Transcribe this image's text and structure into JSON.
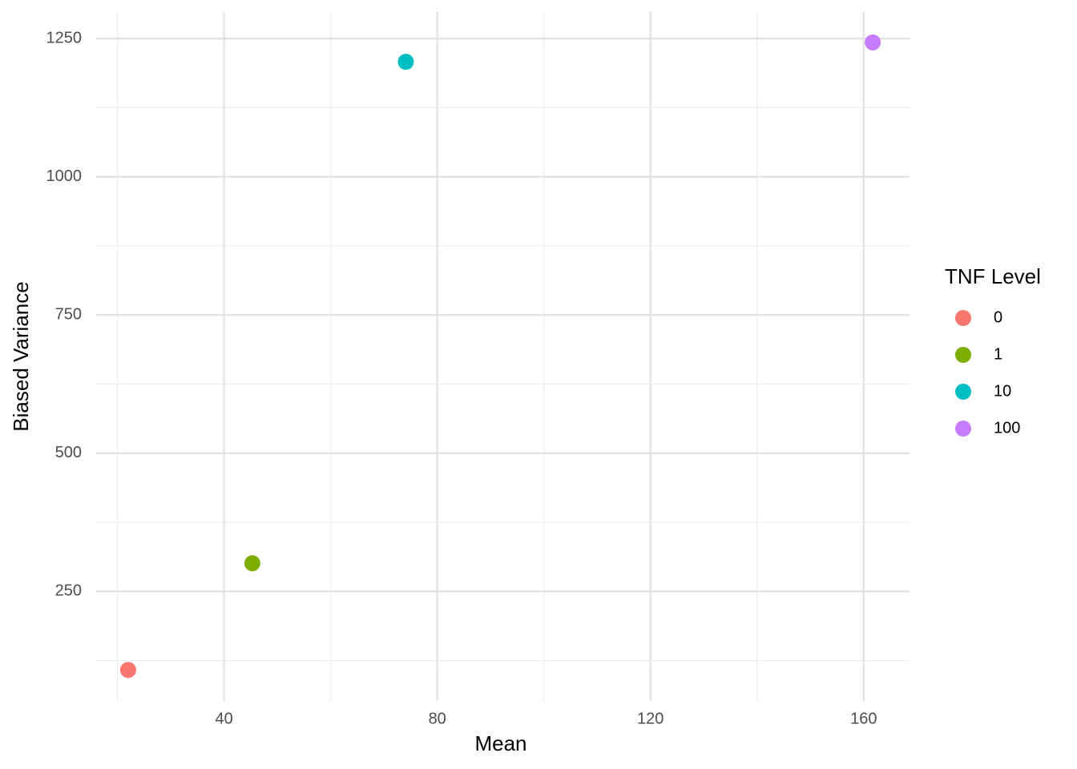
{
  "chart_data": {
    "type": "scatter",
    "x_label": "Mean",
    "y_label": "Biased Variance",
    "legend_title": "TNF Level",
    "legend": "right",
    "series": [
      {
        "name": "0",
        "color": "#F8766D",
        "x": [
          22.0
        ],
        "values": [
          108
        ]
      },
      {
        "name": "1",
        "color": "#7CAE00",
        "x": [
          45.3
        ],
        "values": [
          301
        ]
      },
      {
        "name": "10",
        "color": "#00BFC4",
        "x": [
          74.1
        ],
        "values": [
          1208
        ]
      },
      {
        "name": "100",
        "color": "#C77CFF",
        "x": [
          161.7
        ],
        "values": [
          1243
        ]
      }
    ],
    "xlim": [
      16,
      168.6
    ],
    "xticks": [
      40,
      80,
      120,
      160
    ],
    "x_minor_ticks": [
      20,
      60,
      100,
      140
    ],
    "ylim": [
      52,
      1298
    ],
    "yticks": [
      250,
      500,
      750,
      1000,
      1250
    ],
    "y_minor_ticks": [
      125,
      375,
      625,
      875,
      1125
    ],
    "grid": true
  }
}
